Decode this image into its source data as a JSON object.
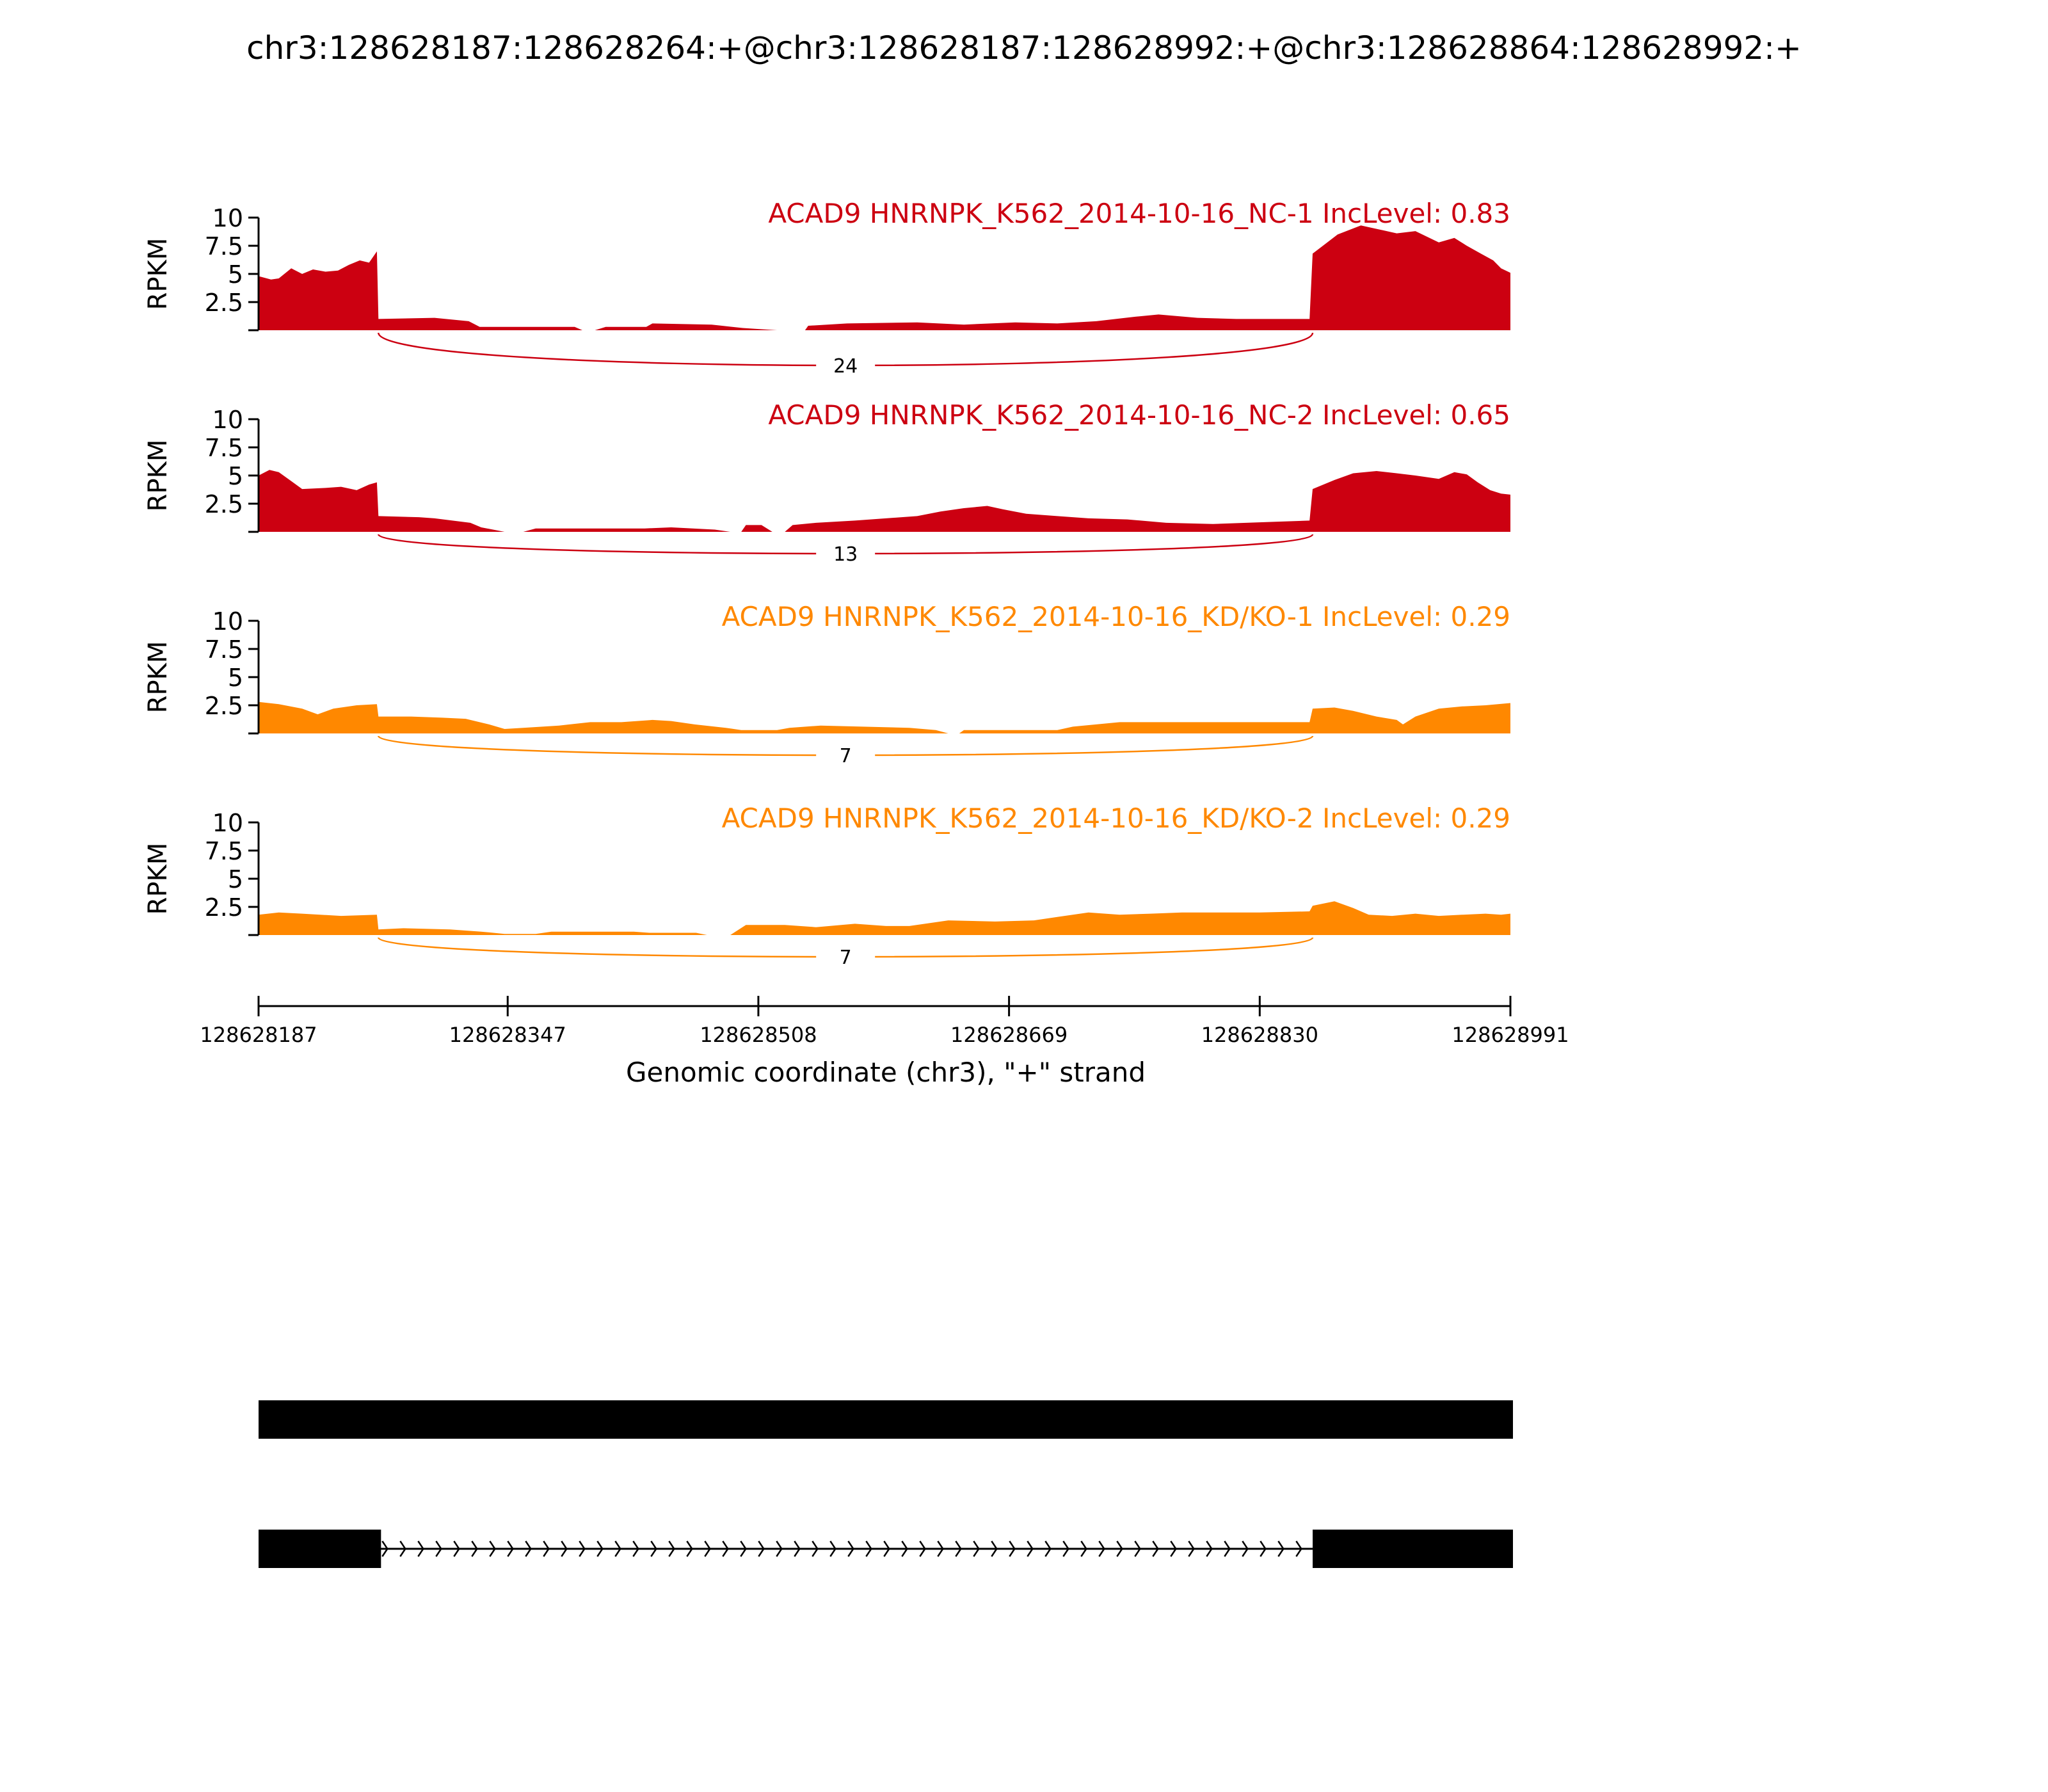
{
  "title": "chr3:128628187:128628264:+@chr3:128628187:128628992:+@chr3:128628864:128628992:+",
  "colors": {
    "nc": "#CC0011",
    "kd": "#FF8800",
    "axis": "#000000",
    "gene": "#000000"
  },
  "chart_data": {
    "type": "area",
    "title": "chr3:128628187:128628264:+@chr3:128628187:128628992:+@chr3:128628864:128628992:+",
    "xlabel": "Genomic coordinate (chr3), \"+\" strand",
    "ylabel": "RPKM",
    "xlim": [
      128628187,
      128628991
    ],
    "x_ticks": [
      128628187,
      128628347,
      128628508,
      128628669,
      128628830,
      128628991
    ],
    "x_tick_labels": [
      "128628187",
      "128628347",
      "128628508",
      "128628669",
      "128628830",
      "128628991"
    ],
    "ylim": [
      0,
      10
    ],
    "y_ticks": [
      2.5,
      5,
      7.5,
      10
    ],
    "y_tick_labels": [
      "2.5",
      "5",
      "7.5",
      "10"
    ],
    "grid": false,
    "series": [
      {
        "name": "ACAD9 HNRNPK_K562_2014-10-16_NC-1 IncLevel: 0.83",
        "group": "nc",
        "junction_count": "24",
        "junction": [
          128628264,
          128628864
        ],
        "points": [
          [
            128628187,
            4.8
          ],
          [
            128628195,
            4.5
          ],
          [
            128628200,
            4.6
          ],
          [
            128628208,
            5.5
          ],
          [
            128628215,
            5.0
          ],
          [
            128628222,
            5.4
          ],
          [
            128628230,
            5.2
          ],
          [
            128628238,
            5.3
          ],
          [
            128628245,
            5.8
          ],
          [
            128628252,
            6.2
          ],
          [
            128628258,
            6.0
          ],
          [
            128628263,
            7.0
          ],
          [
            128628264,
            1.0
          ],
          [
            128628300,
            1.1
          ],
          [
            128628322,
            0.8
          ],
          [
            128628329,
            0.3
          ],
          [
            128628390,
            0.3
          ],
          [
            128628395,
            0.0
          ],
          [
            128628403,
            0.0
          ],
          [
            128628410,
            0.3
          ],
          [
            128628436,
            0.3
          ],
          [
            128628440,
            0.6
          ],
          [
            128628478,
            0.5
          ],
          [
            128628498,
            0.2
          ],
          [
            128628520,
            0.0
          ],
          [
            128628538,
            0.0
          ],
          [
            128628540,
            0.4
          ],
          [
            128628565,
            0.6
          ],
          [
            128628610,
            0.7
          ],
          [
            128628640,
            0.5
          ],
          [
            128628673,
            0.7
          ],
          [
            128628700,
            0.6
          ],
          [
            128628725,
            0.8
          ],
          [
            128628750,
            1.2
          ],
          [
            128628765,
            1.4
          ],
          [
            128628790,
            1.1
          ],
          [
            128628815,
            1.0
          ],
          [
            128628840,
            1.0
          ],
          [
            128628862,
            1.0
          ],
          [
            128628864,
            6.8
          ],
          [
            128628880,
            8.5
          ],
          [
            128628895,
            9.3
          ],
          [
            128628905,
            9.0
          ],
          [
            128628918,
            8.6
          ],
          [
            128628930,
            8.8
          ],
          [
            128628945,
            7.8
          ],
          [
            128628955,
            8.2
          ],
          [
            128628963,
            7.5
          ],
          [
            128628972,
            6.8
          ],
          [
            128628980,
            6.2
          ],
          [
            128628985,
            5.5
          ],
          [
            128628991,
            5.1
          ]
        ]
      },
      {
        "name": "ACAD9 HNRNPK_K562_2014-10-16_NC-2 IncLevel: 0.65",
        "group": "nc",
        "junction_count": "13",
        "junction": [
          128628264,
          128628864
        ],
        "points": [
          [
            128628187,
            5.0
          ],
          [
            128628194,
            5.5
          ],
          [
            128628200,
            5.3
          ],
          [
            128628208,
            4.5
          ],
          [
            128628215,
            3.8
          ],
          [
            128628230,
            3.9
          ],
          [
            128628240,
            4.0
          ],
          [
            128628250,
            3.7
          ],
          [
            128628258,
            4.2
          ],
          [
            128628263,
            4.4
          ],
          [
            128628264,
            1.4
          ],
          [
            128628290,
            1.3
          ],
          [
            128628300,
            1.2
          ],
          [
            128628323,
            0.8
          ],
          [
            128628330,
            0.4
          ],
          [
            128628345,
            0.0
          ],
          [
            128628357,
            0.0
          ],
          [
            128628365,
            0.3
          ],
          [
            128628435,
            0.3
          ],
          [
            128628452,
            0.4
          ],
          [
            128628480,
            0.2
          ],
          [
            128628490,
            0.0
          ],
          [
            128628497,
            0.0
          ],
          [
            128628500,
            0.6
          ],
          [
            128628510,
            0.6
          ],
          [
            128628517,
            0.0
          ],
          [
            128628525,
            0.0
          ],
          [
            128628530,
            0.6
          ],
          [
            128628545,
            0.8
          ],
          [
            128628570,
            1.0
          ],
          [
            128628590,
            1.2
          ],
          [
            128628610,
            1.4
          ],
          [
            128628625,
            1.8
          ],
          [
            128628640,
            2.1
          ],
          [
            128628655,
            2.3
          ],
          [
            128628665,
            2.0
          ],
          [
            128628680,
            1.6
          ],
          [
            128628700,
            1.4
          ],
          [
            128628720,
            1.2
          ],
          [
            128628745,
            1.1
          ],
          [
            128628770,
            0.8
          ],
          [
            128628800,
            0.7
          ],
          [
            128628840,
            0.9
          ],
          [
            128628862,
            1.0
          ],
          [
            128628864,
            3.8
          ],
          [
            128628878,
            4.6
          ],
          [
            128628890,
            5.2
          ],
          [
            128628905,
            5.4
          ],
          [
            128628918,
            5.2
          ],
          [
            128628930,
            5.0
          ],
          [
            128628945,
            4.7
          ],
          [
            128628955,
            5.3
          ],
          [
            128628963,
            5.1
          ],
          [
            128628970,
            4.4
          ],
          [
            128628978,
            3.7
          ],
          [
            128628985,
            3.4
          ],
          [
            128628991,
            3.3
          ]
        ]
      },
      {
        "name": "ACAD9 HNRNPK_K562_2014-10-16_KD/KO-1 IncLevel: 0.29",
        "group": "kd",
        "junction_count": "7",
        "junction": [
          128628264,
          128628864
        ],
        "points": [
          [
            128628187,
            2.8
          ],
          [
            128628200,
            2.6
          ],
          [
            128628215,
            2.2
          ],
          [
            128628225,
            1.7
          ],
          [
            128628235,
            2.2
          ],
          [
            128628250,
            2.5
          ],
          [
            128628263,
            2.6
          ],
          [
            128628264,
            1.5
          ],
          [
            128628285,
            1.5
          ],
          [
            128628305,
            1.4
          ],
          [
            128628320,
            1.3
          ],
          [
            128628335,
            0.8
          ],
          [
            128628345,
            0.4
          ],
          [
            128628357,
            0.5
          ],
          [
            128628380,
            0.7
          ],
          [
            128628400,
            1.0
          ],
          [
            128628420,
            1.0
          ],
          [
            128628440,
            1.2
          ],
          [
            128628452,
            1.1
          ],
          [
            128628467,
            0.8
          ],
          [
            128628487,
            0.5
          ],
          [
            128628497,
            0.3
          ],
          [
            128628520,
            0.3
          ],
          [
            128628528,
            0.5
          ],
          [
            128628548,
            0.7
          ],
          [
            128628575,
            0.6
          ],
          [
            128628605,
            0.5
          ],
          [
            128628622,
            0.3
          ],
          [
            128628630,
            0.0
          ],
          [
            128628637,
            0.0
          ],
          [
            128628640,
            0.3
          ],
          [
            128628700,
            0.3
          ],
          [
            128628710,
            0.6
          ],
          [
            128628725,
            0.8
          ],
          [
            128628740,
            1.0
          ],
          [
            128628762,
            1.0
          ],
          [
            128628780,
            1.0
          ],
          [
            128628862,
            1.0
          ],
          [
            128628864,
            2.2
          ],
          [
            128628878,
            2.3
          ],
          [
            128628890,
            2.0
          ],
          [
            128628905,
            1.5
          ],
          [
            128628918,
            1.2
          ],
          [
            128628922,
            0.8
          ],
          [
            128628930,
            1.5
          ],
          [
            128628945,
            2.2
          ],
          [
            128628960,
            2.4
          ],
          [
            128628975,
            2.5
          ],
          [
            128628991,
            2.7
          ]
        ]
      },
      {
        "name": "ACAD9 HNRNPK_K562_2014-10-16_KD/KO-2 IncLevel: 0.29",
        "group": "kd",
        "junction_count": "7",
        "junction": [
          128628264,
          128628864
        ],
        "points": [
          [
            128628187,
            1.8
          ],
          [
            128628200,
            2.0
          ],
          [
            128628215,
            1.9
          ],
          [
            128628240,
            1.7
          ],
          [
            128628263,
            1.8
          ],
          [
            128628264,
            0.5
          ],
          [
            128628280,
            0.6
          ],
          [
            128628310,
            0.5
          ],
          [
            128628330,
            0.3
          ],
          [
            128628345,
            0.1
          ],
          [
            128628365,
            0.1
          ],
          [
            128628375,
            0.3
          ],
          [
            128628428,
            0.3
          ],
          [
            128628438,
            0.2
          ],
          [
            128628468,
            0.2
          ],
          [
            128628475,
            0.0
          ],
          [
            128628490,
            0.0
          ],
          [
            128628500,
            0.9
          ],
          [
            128628525,
            0.9
          ],
          [
            128628545,
            0.7
          ],
          [
            128628570,
            1.0
          ],
          [
            128628590,
            0.8
          ],
          [
            128628605,
            0.8
          ],
          [
            128628630,
            1.3
          ],
          [
            128628660,
            1.2
          ],
          [
            128628685,
            1.3
          ],
          [
            128628700,
            1.6
          ],
          [
            128628720,
            2.0
          ],
          [
            128628740,
            1.8
          ],
          [
            128628760,
            1.9
          ],
          [
            128628780,
            2.0
          ],
          [
            128628800,
            2.0
          ],
          [
            128628830,
            2.0
          ],
          [
            128628862,
            2.1
          ],
          [
            128628864,
            2.6
          ],
          [
            128628878,
            3.0
          ],
          [
            128628890,
            2.4
          ],
          [
            128628900,
            1.8
          ],
          [
            128628915,
            1.7
          ],
          [
            128628930,
            1.9
          ],
          [
            128628945,
            1.7
          ],
          [
            128628960,
            1.8
          ],
          [
            128628975,
            1.9
          ],
          [
            128628985,
            1.8
          ],
          [
            128628991,
            1.9
          ]
        ]
      }
    ],
    "isoforms": [
      {
        "exons": [
          [
            128628187,
            128628991
          ]
        ]
      },
      {
        "exons": [
          [
            128628187,
            128628264
          ],
          [
            128628864,
            128628991
          ]
        ],
        "strand": "+"
      }
    ]
  }
}
